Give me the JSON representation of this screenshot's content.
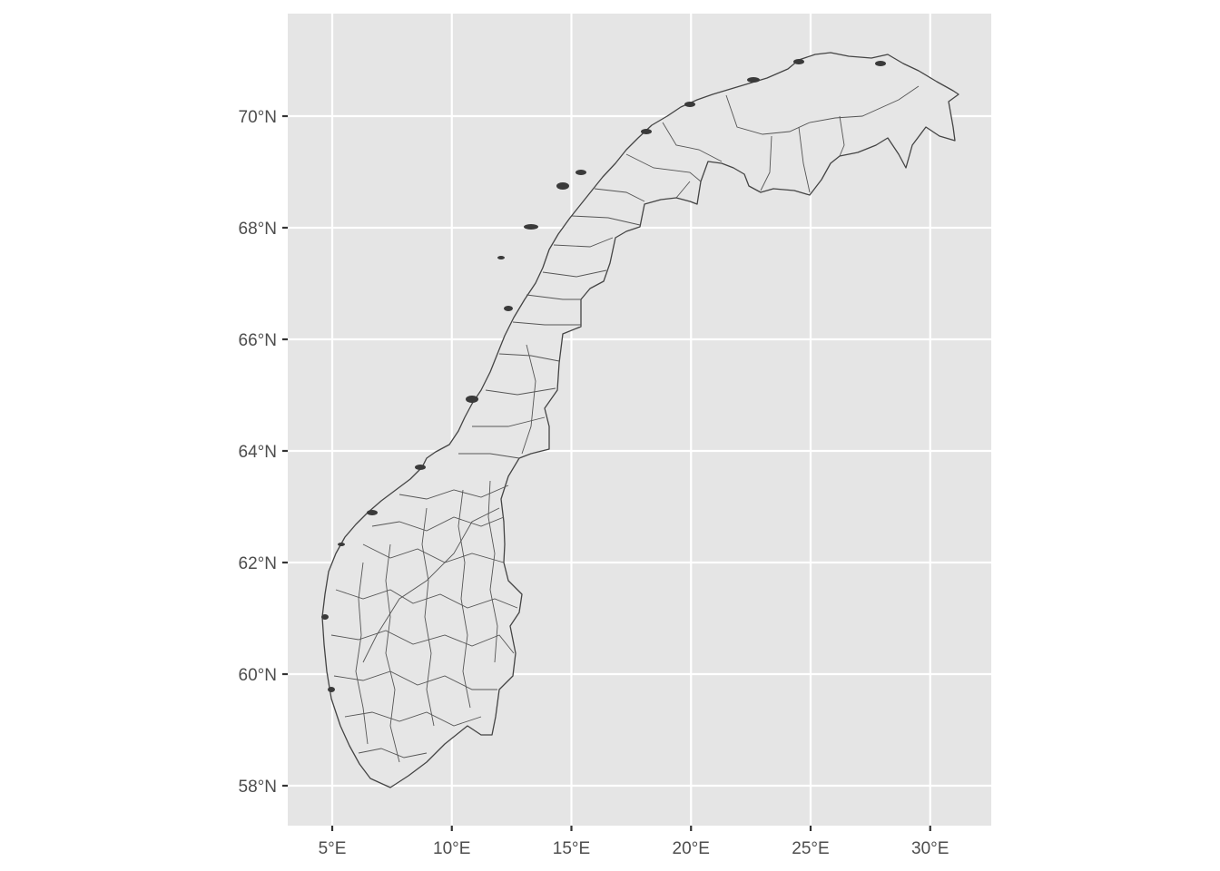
{
  "map": {
    "panel_color": "#e5e5e5",
    "grid_color": "#ffffff",
    "region_fill": "#e6e6e6",
    "border_color": "#444444",
    "x_axis": {
      "ticks": [
        {
          "value": 5,
          "label": "5°E"
        },
        {
          "value": 10,
          "label": "10°E"
        },
        {
          "value": 15,
          "label": "15°E"
        },
        {
          "value": 20,
          "label": "20°E"
        },
        {
          "value": 25,
          "label": "25°E"
        },
        {
          "value": 30,
          "label": "30°E"
        }
      ]
    },
    "y_axis": {
      "ticks": [
        {
          "value": 58,
          "label": "58°N"
        },
        {
          "value": 60,
          "label": "60°N"
        },
        {
          "value": 62,
          "label": "62°N"
        },
        {
          "value": 64,
          "label": "64°N"
        },
        {
          "value": 66,
          "label": "66°N"
        },
        {
          "value": 68,
          "label": "68°N"
        },
        {
          "value": 70,
          "label": "70°N"
        }
      ]
    }
  }
}
